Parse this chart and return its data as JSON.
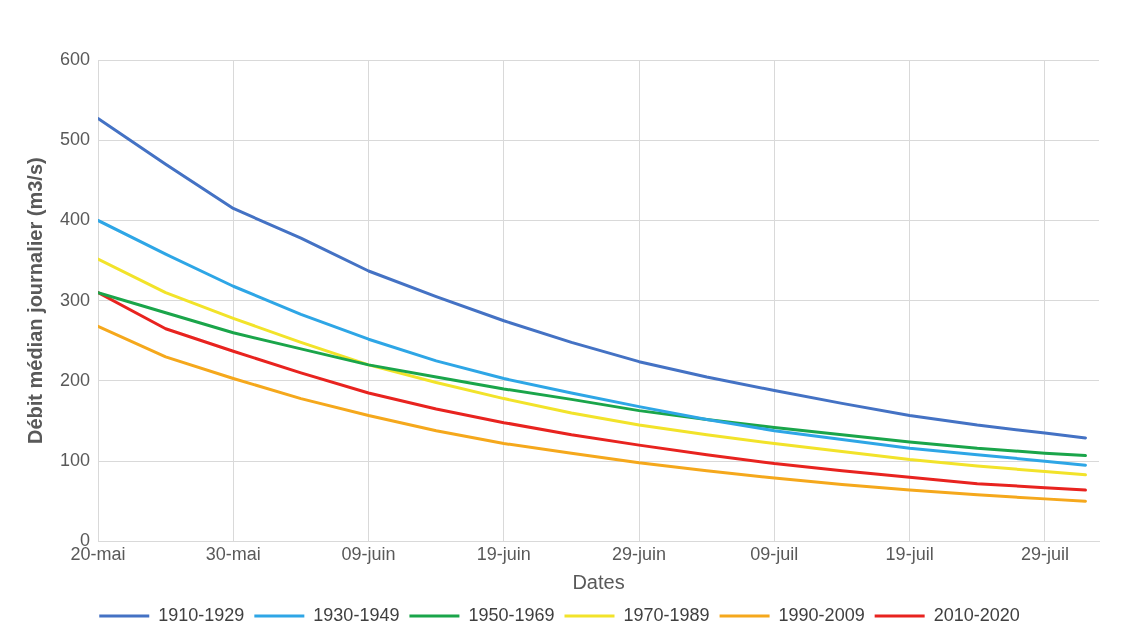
{
  "chart_data": {
    "type": "line",
    "xlabel": "Dates",
    "ylabel": "Débit médian journalier (m3/s)",
    "x": [
      "--05-20",
      "--05-25",
      "--05-30",
      "--06-04",
      "--06-09",
      "--06-14",
      "--06-19",
      "--06-24",
      "--06-29",
      "--07-04",
      "--07-09",
      "--07-14",
      "--07-19",
      "--07-24",
      "--07-29",
      "--08-01"
    ],
    "xlim": [
      "--05-20",
      "--08-02"
    ],
    "xticks": [
      {
        "value": "--05-20",
        "label": "20-mai"
      },
      {
        "value": "--05-30",
        "label": "30-mai"
      },
      {
        "value": "--06-09",
        "label": "09-juin"
      },
      {
        "value": "--06-19",
        "label": "19-juin"
      },
      {
        "value": "--06-29",
        "label": "29-juin"
      },
      {
        "value": "--07-09",
        "label": "09-juil"
      },
      {
        "value": "--07-19",
        "label": "19-juil"
      },
      {
        "value": "--07-29",
        "label": "29-juil"
      }
    ],
    "ylim": [
      0,
      600
    ],
    "yticks": [
      0,
      100,
      200,
      300,
      400,
      500,
      600
    ],
    "grid": true,
    "legend": "bottom",
    "marker": "none",
    "line_style": "solid",
    "series": [
      {
        "name": "1910-1929",
        "color": "#4472c4",
        "values": [
          527,
          470,
          415,
          378,
          337,
          305,
          275,
          248,
          224,
          205,
          188,
          172,
          157,
          145,
          135,
          129
        ]
      },
      {
        "name": "1930-1949",
        "color": "#2ea6e6",
        "values": [
          400,
          358,
          318,
          283,
          252,
          225,
          203,
          185,
          168,
          152,
          138,
          127,
          116,
          108,
          100,
          95
        ]
      },
      {
        "name": "1950-1969",
        "color": "#1aa54a",
        "values": [
          310,
          285,
          260,
          240,
          220,
          205,
          190,
          177,
          163,
          152,
          142,
          133,
          124,
          116,
          110,
          107
        ]
      },
      {
        "name": "1970-1989",
        "color": "#f2e32a",
        "values": [
          352,
          310,
          278,
          248,
          220,
          198,
          178,
          160,
          145,
          133,
          122,
          112,
          102,
          94,
          87,
          83
        ]
      },
      {
        "name": "1990-2009",
        "color": "#f5a81c",
        "values": [
          268,
          230,
          203,
          178,
          157,
          138,
          122,
          110,
          98,
          88,
          79,
          71,
          64,
          58,
          53,
          50
        ]
      },
      {
        "name": "2010-2020",
        "color": "#e8231f",
        "values": [
          310,
          265,
          237,
          210,
          185,
          165,
          148,
          133,
          120,
          108,
          97,
          88,
          80,
          72,
          67,
          64
        ]
      }
    ]
  }
}
